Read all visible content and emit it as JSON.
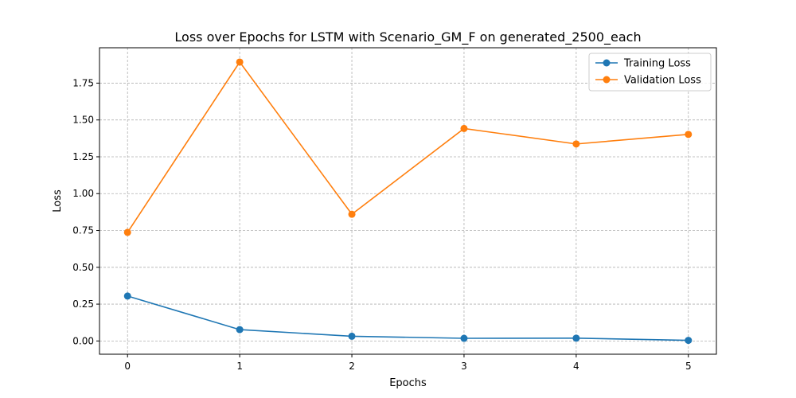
{
  "chart_data": {
    "type": "line",
    "title": "Loss over Epochs for LSTM with Scenario_GM_F on generated_2500_each",
    "xlabel": "Epochs",
    "ylabel": "Loss",
    "x": [
      0,
      1,
      2,
      3,
      4,
      5
    ],
    "xticks": [
      "0",
      "1",
      "2",
      "3",
      "4",
      "5"
    ],
    "yticks": [
      "0.00",
      "0.25",
      "0.50",
      "0.75",
      "1.00",
      "1.25",
      "1.50",
      "1.75"
    ],
    "xlim": [
      -0.25,
      5.25
    ],
    "ylim": [
      -0.09,
      1.99
    ],
    "grid": true,
    "legend_position": "top-right",
    "series": [
      {
        "name": "Training Loss",
        "color": "#1f77b4",
        "values": [
          0.305,
          0.077,
          0.032,
          0.018,
          0.019,
          0.004
        ]
      },
      {
        "name": "Validation Loss",
        "color": "#ff7f0e",
        "values": [
          0.737,
          1.893,
          0.86,
          1.442,
          1.337,
          1.402
        ]
      }
    ]
  }
}
